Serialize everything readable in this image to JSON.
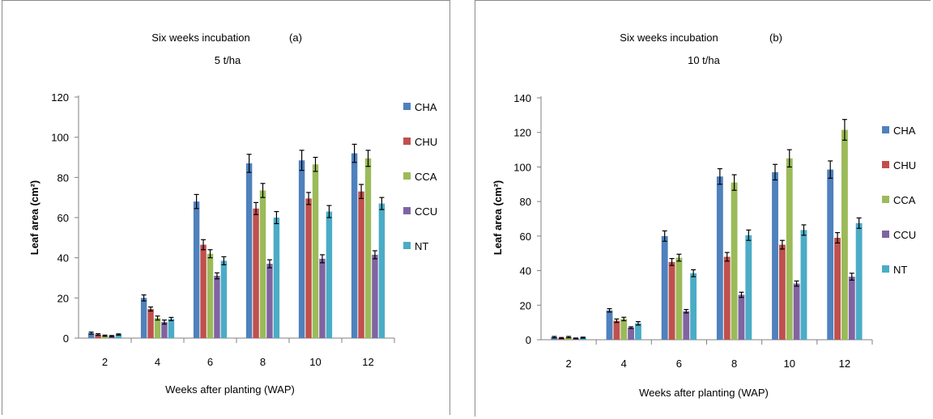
{
  "chart_data": [
    {
      "type": "bar",
      "title": "Six weeks incubation",
      "panel_label": "(a)",
      "subtitle": "5 t/ha",
      "xlabel": "Weeks after planting (WAP)",
      "ylabel": "Leaf area (cm²)",
      "ylim": [
        0,
        120
      ],
      "yticks": [
        0,
        20,
        40,
        60,
        80,
        100,
        120
      ],
      "categories": [
        "2",
        "4",
        "6",
        "8",
        "10",
        "12"
      ],
      "legend_position": "right",
      "series": [
        {
          "name": "CHA",
          "color": "#4F81BD",
          "values": [
            2.5,
            20,
            68,
            87,
            88.5,
            92
          ],
          "errors": [
            0.5,
            1.5,
            3.5,
            4.5,
            5,
            4.5
          ]
        },
        {
          "name": "CHU",
          "color": "#C0504D",
          "values": [
            1.8,
            14.5,
            46.5,
            64.5,
            69.5,
            73
          ],
          "errors": [
            0.4,
            1,
            2.5,
            3,
            3,
            3.5
          ]
        },
        {
          "name": "CCA",
          "color": "#9BBB59",
          "values": [
            1.2,
            10,
            42,
            73.5,
            86.5,
            89.5
          ],
          "errors": [
            0.3,
            1,
            2,
            3.5,
            3.5,
            4
          ]
        },
        {
          "name": "CCU",
          "color": "#8064A2",
          "values": [
            1,
            8,
            31,
            37,
            39.5,
            41.5
          ],
          "errors": [
            0.3,
            1,
            1.5,
            2,
            2,
            2
          ]
        },
        {
          "name": "NT",
          "color": "#4BACC6",
          "values": [
            1.8,
            9.5,
            38.5,
            60,
            63,
            67
          ],
          "errors": [
            0.3,
            0.8,
            2,
            3,
            3,
            3
          ]
        }
      ]
    },
    {
      "type": "bar",
      "title": "Six weeks incubation",
      "panel_label": "(b)",
      "subtitle": "10 t/ha",
      "xlabel": "Weeks after planting (WAP)",
      "ylabel": "Leaf area (cm²)",
      "ylim": [
        0,
        140
      ],
      "yticks": [
        0,
        20,
        40,
        60,
        80,
        100,
        120,
        140
      ],
      "categories": [
        "2",
        "4",
        "6",
        "8",
        "10",
        "12"
      ],
      "legend_position": "right",
      "series": [
        {
          "name": "CHA",
          "color": "#4F81BD",
          "values": [
            1.5,
            17,
            60,
            94.5,
            97,
            98.5
          ],
          "errors": [
            0.4,
            1,
            3,
            4.5,
            4.5,
            5
          ]
        },
        {
          "name": "CHU",
          "color": "#C0504D",
          "values": [
            1,
            11,
            45,
            48,
            55,
            59
          ],
          "errors": [
            0.3,
            1,
            2,
            2.5,
            2.5,
            3
          ]
        },
        {
          "name": "CCA",
          "color": "#9BBB59",
          "values": [
            1.5,
            12,
            47.5,
            91,
            105,
            121.5
          ],
          "errors": [
            0.4,
            1,
            2,
            4.5,
            5,
            6
          ]
        },
        {
          "name": "CCU",
          "color": "#8064A2",
          "values": [
            0.8,
            7,
            16.5,
            26,
            32.5,
            36.5
          ],
          "errors": [
            0.2,
            0.5,
            1,
            1.5,
            1.5,
            2
          ]
        },
        {
          "name": "NT",
          "color": "#4BACC6",
          "values": [
            1.2,
            9.5,
            38.5,
            60.5,
            63.5,
            67.5
          ],
          "errors": [
            0.3,
            1,
            2,
            3,
            3,
            3
          ]
        }
      ]
    }
  ]
}
